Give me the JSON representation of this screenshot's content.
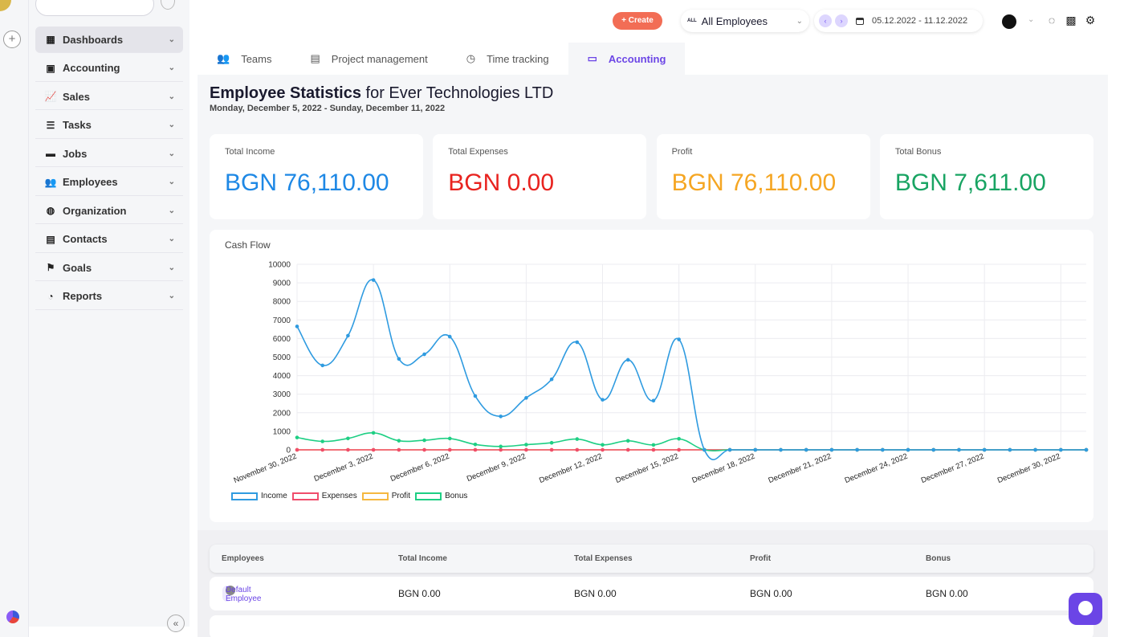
{
  "header": {
    "create_label": "+ Create",
    "employee_filter_badge": "ALL",
    "employee_filter": "All Employees",
    "date_range": "05.12.2022 - 11.12.2022"
  },
  "sidebar": {
    "items": [
      {
        "label": "Dashboards",
        "icon": "grid-icon",
        "glyph": "▦"
      },
      {
        "label": "Accounting",
        "icon": "id-card-icon",
        "glyph": "▣"
      },
      {
        "label": "Sales",
        "icon": "line-chart-icon",
        "glyph": "📈"
      },
      {
        "label": "Tasks",
        "icon": "tasks-icon",
        "glyph": "☰"
      },
      {
        "label": "Jobs",
        "icon": "briefcase-icon",
        "glyph": "▬"
      },
      {
        "label": "Employees",
        "icon": "users-icon",
        "glyph": "👥"
      },
      {
        "label": "Organization",
        "icon": "globe-icon",
        "glyph": "◍"
      },
      {
        "label": "Contacts",
        "icon": "contact-book-icon",
        "glyph": "▤"
      },
      {
        "label": "Goals",
        "icon": "flag-icon",
        "glyph": "⚑"
      },
      {
        "label": "Reports",
        "icon": "pie-chart-icon",
        "glyph": "◔"
      }
    ]
  },
  "tabs": [
    {
      "label": "Teams",
      "glyph": "👥"
    },
    {
      "label": "Project management",
      "glyph": "▤"
    },
    {
      "label": "Time tracking",
      "glyph": "◷"
    },
    {
      "label": "Accounting",
      "glyph": "▭"
    }
  ],
  "main": {
    "title_bold": "Employee Statistics",
    "title_rest": " for Ever Technologies LTD",
    "subtitle": "Monday, December 5, 2022 - Sunday, December 11, 2022"
  },
  "cards": [
    {
      "label": "Total Income",
      "value": "BGN 76,110.00",
      "color": "#1e88e5"
    },
    {
      "label": "Total Expenses",
      "value": "BGN 0.00",
      "color": "#e8231f"
    },
    {
      "label": "Profit",
      "value": "BGN 76,110.00",
      "color": "#f5a623"
    },
    {
      "label": "Total Bonus",
      "value": "BGN 7,611.00",
      "color": "#19a463"
    }
  ],
  "chart_data": {
    "type": "line",
    "title": "Cash Flow",
    "ylim": [
      0,
      10000
    ],
    "y_ticks": [
      "10000",
      "9000",
      "8000",
      "7000",
      "6000",
      "5000",
      "4000",
      "3000",
      "2000",
      "1000",
      "0"
    ],
    "x_tick_labels": [
      "November 30, 2022",
      "December 3, 2022",
      "December 6, 2022",
      "December 9, 2022",
      "December 12, 2022",
      "December 15, 2022",
      "December 18, 2022",
      "December 21, 2022",
      "December 24, 2022",
      "December 27, 2022",
      "December 30, 2022"
    ],
    "x_start": "2022-11-30",
    "series": [
      {
        "name": "Income",
        "color": "#2f9be0",
        "values": [
          6650,
          4550,
          6150,
          9150,
          4900,
          5150,
          6100,
          2900,
          1800,
          2800,
          3800,
          5800,
          2700,
          4850,
          2650,
          5950,
          0,
          0,
          0,
          0,
          0,
          0,
          0,
          0,
          0,
          0,
          0,
          0,
          0,
          0,
          0,
          0
        ]
      },
      {
        "name": "Expenses",
        "color": "#f04d6c",
        "values": [
          0,
          0,
          0,
          0,
          0,
          0,
          0,
          0,
          0,
          0,
          0,
          0,
          0,
          0,
          0,
          0,
          0,
          0,
          0,
          0,
          0,
          0,
          0,
          0,
          0,
          0,
          0,
          0,
          0,
          0,
          0,
          0
        ]
      },
      {
        "name": "Profit",
        "color": "#f5b841",
        "values": [
          0,
          0,
          0,
          0,
          0,
          0,
          0,
          0,
          0,
          0,
          0,
          0,
          0,
          0,
          0,
          0,
          0,
          0,
          0,
          0,
          0,
          0,
          0,
          0,
          0,
          0,
          0,
          0,
          0,
          0,
          0,
          0
        ]
      },
      {
        "name": "Bonus",
        "color": "#1ecf84",
        "values": [
          665,
          455,
          615,
          915,
          490,
          515,
          610,
          290,
          180,
          280,
          380,
          580,
          270,
          485,
          265,
          595,
          0,
          0,
          0,
          0,
          0,
          0,
          0,
          0,
          0,
          0,
          0,
          0,
          0,
          0,
          0,
          0
        ]
      }
    ]
  },
  "table": {
    "headers": [
      "Employees",
      "Total Income",
      "Total Expenses",
      "Profit",
      "Bonus"
    ],
    "rows": [
      {
        "employee": "Default Employee",
        "income": "BGN 0.00",
        "expenses": "BGN 0.00",
        "profit": "BGN 0.00",
        "bonus": "BGN 0.00"
      }
    ]
  }
}
